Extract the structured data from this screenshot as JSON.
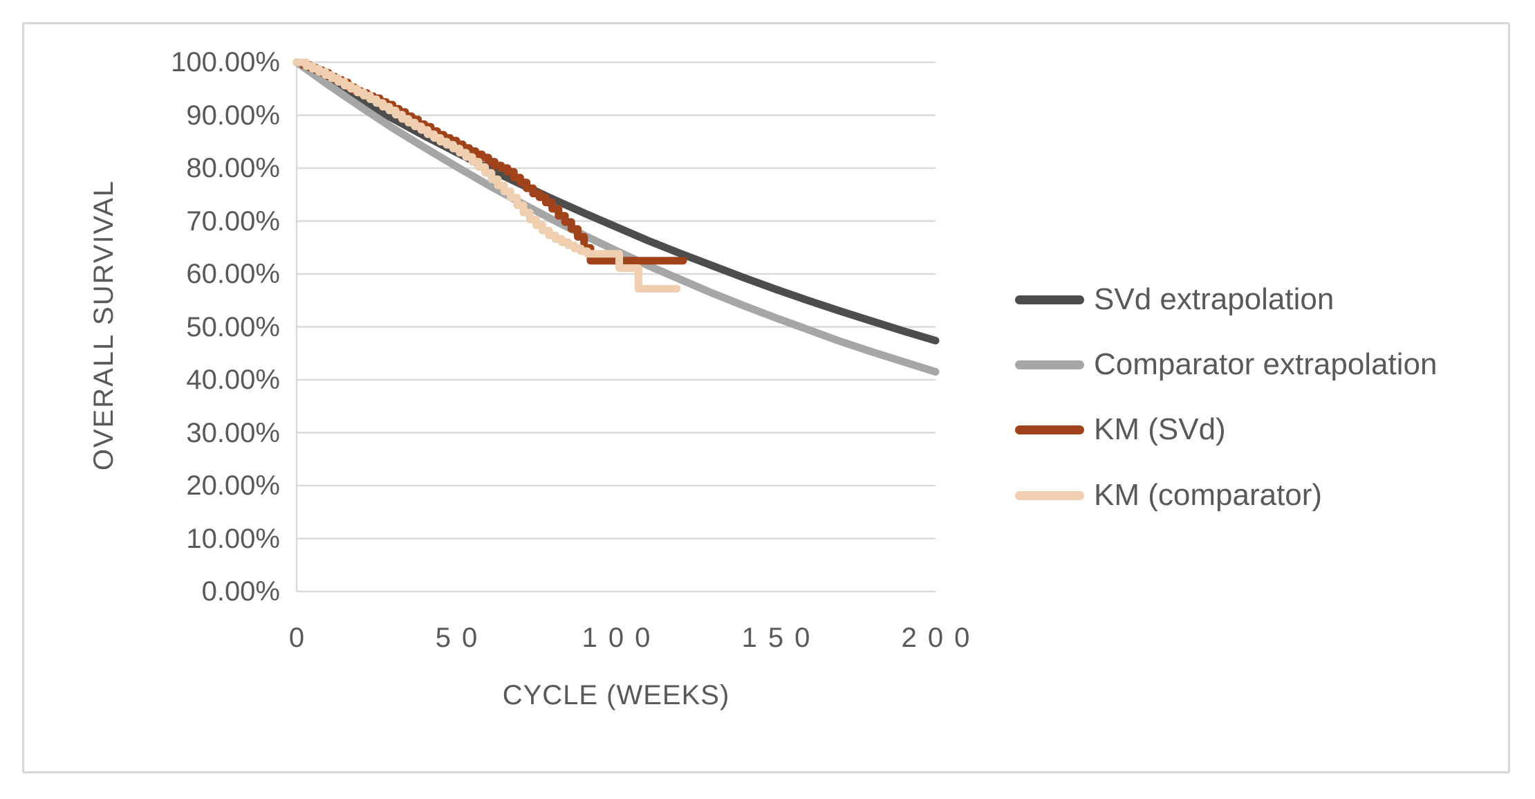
{
  "chart_data": {
    "type": "line",
    "title": "",
    "xlabel": "CYCLE (WEEKS)",
    "ylabel": "OVERALL SURVIVAL",
    "xlim": [
      0,
      200
    ],
    "ylim": [
      0,
      100
    ],
    "x_ticks": [
      0,
      50,
      100,
      150,
      200
    ],
    "y_ticks": [
      0,
      10,
      20,
      30,
      40,
      50,
      60,
      70,
      80,
      90,
      100
    ],
    "y_tick_format": "percent-2dp",
    "grid": "horizontal",
    "legend_position": "right",
    "series": [
      {
        "name": "SVd extrapolation",
        "color": "#4d4d4d",
        "width": 11,
        "step": false,
        "points": [
          [
            0,
            100
          ],
          [
            10,
            96.3
          ],
          [
            20,
            92.8
          ],
          [
            30,
            89.4
          ],
          [
            40,
            86.1
          ],
          [
            50,
            83.0
          ],
          [
            60,
            79.9
          ],
          [
            70,
            77.0
          ],
          [
            80,
            74.2
          ],
          [
            90,
            71.5
          ],
          [
            100,
            68.9
          ],
          [
            110,
            66.3
          ],
          [
            120,
            63.9
          ],
          [
            130,
            61.6
          ],
          [
            140,
            59.3
          ],
          [
            150,
            57.1
          ],
          [
            160,
            55.0
          ],
          [
            170,
            53.0
          ],
          [
            180,
            51.1
          ],
          [
            190,
            49.2
          ],
          [
            200,
            47.4
          ]
        ]
      },
      {
        "name": "Comparator extrapolation",
        "color": "#a6a6a6",
        "width": 11,
        "step": false,
        "points": [
          [
            0,
            100
          ],
          [
            10,
            95.7
          ],
          [
            20,
            91.6
          ],
          [
            30,
            87.6
          ],
          [
            40,
            83.9
          ],
          [
            50,
            80.3
          ],
          [
            60,
            76.8
          ],
          [
            70,
            73.5
          ],
          [
            80,
            70.3
          ],
          [
            90,
            67.3
          ],
          [
            100,
            64.4
          ],
          [
            110,
            61.6
          ],
          [
            120,
            59.0
          ],
          [
            130,
            56.4
          ],
          [
            140,
            54.0
          ],
          [
            150,
            51.7
          ],
          [
            160,
            49.5
          ],
          [
            170,
            47.3
          ],
          [
            180,
            45.3
          ],
          [
            190,
            43.4
          ],
          [
            200,
            41.5
          ]
        ]
      },
      {
        "name": "KM (SVd)",
        "color": "#a1431a",
        "width": 11,
        "step": true,
        "points": [
          [
            0,
            100
          ],
          [
            2,
            99.5
          ],
          [
            4,
            99.0
          ],
          [
            6,
            98.5
          ],
          [
            8,
            98.0
          ],
          [
            10,
            97.3
          ],
          [
            12,
            96.7
          ],
          [
            14,
            96.2
          ],
          [
            16,
            95.3
          ],
          [
            18,
            94.6
          ],
          [
            20,
            94.2
          ],
          [
            22,
            93.6
          ],
          [
            24,
            93.2
          ],
          [
            26,
            92.5
          ],
          [
            28,
            92.0
          ],
          [
            30,
            91.2
          ],
          [
            32,
            90.6
          ],
          [
            34,
            89.8
          ],
          [
            36,
            89.2
          ],
          [
            38,
            88.3
          ],
          [
            40,
            87.8
          ],
          [
            42,
            87.0
          ],
          [
            44,
            86.3
          ],
          [
            46,
            85.7
          ],
          [
            48,
            85.2
          ],
          [
            50,
            84.5
          ],
          [
            52,
            83.8
          ],
          [
            54,
            83.2
          ],
          [
            56,
            82.6
          ],
          [
            58,
            82.0
          ],
          [
            60,
            81.2
          ],
          [
            62,
            80.5
          ],
          [
            64,
            80.0
          ],
          [
            66,
            79.3
          ],
          [
            68,
            78.2
          ],
          [
            70,
            77.3
          ],
          [
            72,
            76.2
          ],
          [
            74,
            75.2
          ],
          [
            76,
            74.5
          ],
          [
            78,
            73.5
          ],
          [
            80,
            72.3
          ],
          [
            82,
            71.0
          ],
          [
            84,
            69.8
          ],
          [
            86,
            68.5
          ],
          [
            88,
            67.0
          ],
          [
            90,
            64.9
          ],
          [
            92,
            62.5
          ],
          [
            121,
            62.5
          ]
        ]
      },
      {
        "name": "KM (comparator)",
        "color": "#efcfb0",
        "width": 11,
        "step": true,
        "points": [
          [
            0,
            100
          ],
          [
            3,
            99.3
          ],
          [
            5,
            98.8
          ],
          [
            7,
            98.2
          ],
          [
            9,
            97.6
          ],
          [
            11,
            97.0
          ],
          [
            13,
            96.3
          ],
          [
            15,
            95.6
          ],
          [
            17,
            95.0
          ],
          [
            19,
            94.3
          ],
          [
            21,
            93.7
          ],
          [
            23,
            93.0
          ],
          [
            25,
            92.3
          ],
          [
            27,
            91.6
          ],
          [
            29,
            90.9
          ],
          [
            31,
            90.1
          ],
          [
            33,
            89.3
          ],
          [
            35,
            88.6
          ],
          [
            37,
            87.9
          ],
          [
            39,
            87.2
          ],
          [
            41,
            86.4
          ],
          [
            43,
            85.7
          ],
          [
            45,
            85.0
          ],
          [
            47,
            84.4
          ],
          [
            49,
            83.7
          ],
          [
            51,
            82.9
          ],
          [
            53,
            82.1
          ],
          [
            55,
            81.2
          ],
          [
            57,
            80.2
          ],
          [
            59,
            79.1
          ],
          [
            61,
            77.9
          ],
          [
            63,
            76.7
          ],
          [
            65,
            75.6
          ],
          [
            67,
            74.4
          ],
          [
            69,
            73.0
          ],
          [
            71,
            71.6
          ],
          [
            73,
            70.3
          ],
          [
            75,
            69.2
          ],
          [
            77,
            68.2
          ],
          [
            79,
            67.3
          ],
          [
            81,
            66.6
          ],
          [
            83,
            66.0
          ],
          [
            85,
            65.4
          ],
          [
            87,
            64.8
          ],
          [
            89,
            64.3
          ],
          [
            91,
            63.8
          ],
          [
            101,
            61.1
          ],
          [
            107,
            57.2
          ],
          [
            119,
            57.2
          ]
        ]
      }
    ],
    "style": {
      "gridline_color": "#d9d9d9",
      "axis_line_color": "#d9d9d9",
      "text_color": "#595959",
      "frame_border_color": "#d7d7d7",
      "background": "#ffffff"
    }
  }
}
